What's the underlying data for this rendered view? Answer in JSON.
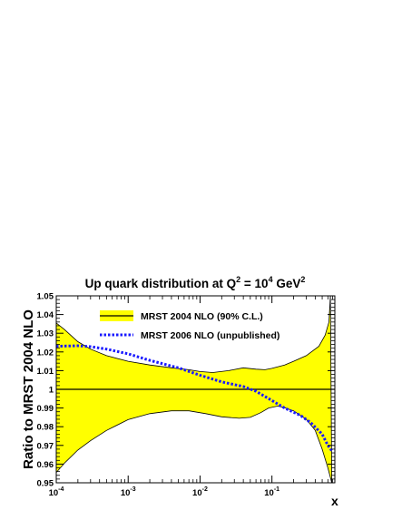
{
  "chart_data": {
    "type": "line",
    "title": {
      "prefix": "Up quark distribution at Q",
      "q_exp": "2",
      "mid": " = 10",
      "val_exp": "4",
      "unit": " GeV",
      "unit_exp": "2"
    },
    "ylabel": "Ratio to MRST 2004 NLO",
    "xlabel": "x",
    "x_scale": "log",
    "xlim": [
      0.0001,
      0.75
    ],
    "ylim": [
      0.95,
      1.05
    ],
    "x_ticks": [
      {
        "value": 0.0001,
        "base": "10",
        "exp": "-4"
      },
      {
        "value": 0.001,
        "base": "10",
        "exp": "-3"
      },
      {
        "value": 0.01,
        "base": "10",
        "exp": "-2"
      },
      {
        "value": 0.1,
        "base": "10",
        "exp": "-1"
      }
    ],
    "y_ticks": [
      {
        "value": 0.95,
        "label": "0.95"
      },
      {
        "value": 0.96,
        "label": "0.96"
      },
      {
        "value": 0.97,
        "label": "0.97"
      },
      {
        "value": 0.98,
        "label": "0.98"
      },
      {
        "value": 0.99,
        "label": "0.99"
      },
      {
        "value": 1.0,
        "label": "1"
      },
      {
        "value": 1.01,
        "label": "1.01"
      },
      {
        "value": 1.02,
        "label": "1.02"
      },
      {
        "value": 1.03,
        "label": "1.03"
      },
      {
        "value": 1.04,
        "label": "1.04"
      },
      {
        "value": 1.05,
        "label": "1.05"
      }
    ],
    "legend_position": "top-left",
    "band": {
      "name": "MRST 2004 NLO (90% C.L.)",
      "fill": "#ffff00",
      "upper": [
        [
          0.0001,
          1.0355
        ],
        [
          0.00013,
          1.032
        ],
        [
          0.0002,
          1.0255
        ],
        [
          0.0003,
          1.0215
        ],
        [
          0.0005,
          1.018
        ],
        [
          0.001,
          1.015
        ],
        [
          0.002,
          1.013
        ],
        [
          0.004,
          1.0115
        ],
        [
          0.007,
          1.0105
        ],
        [
          0.01,
          1.0095
        ],
        [
          0.015,
          1.009
        ],
        [
          0.025,
          1.01
        ],
        [
          0.04,
          1.0115
        ],
        [
          0.06,
          1.0108
        ],
        [
          0.08,
          1.0105
        ],
        [
          0.1,
          1.0112
        ],
        [
          0.15,
          1.013
        ],
        [
          0.2,
          1.015
        ],
        [
          0.3,
          1.018
        ],
        [
          0.45,
          1.023
        ],
        [
          0.55,
          1.029
        ],
        [
          0.62,
          1.036
        ],
        [
          0.65,
          1.05
        ]
      ],
      "lower": [
        [
          0.0001,
          0.9555
        ],
        [
          0.00013,
          0.9605
        ],
        [
          0.0002,
          0.9675
        ],
        [
          0.0003,
          0.9725
        ],
        [
          0.0005,
          0.978
        ],
        [
          0.001,
          0.9838
        ],
        [
          0.002,
          0.987
        ],
        [
          0.004,
          0.9885
        ],
        [
          0.007,
          0.9885
        ],
        [
          0.012,
          0.987
        ],
        [
          0.02,
          0.9853
        ],
        [
          0.035,
          0.9845
        ],
        [
          0.05,
          0.985
        ],
        [
          0.07,
          0.9875
        ],
        [
          0.09,
          0.99
        ],
        [
          0.12,
          0.991
        ],
        [
          0.15,
          0.9902
        ],
        [
          0.2,
          0.9885
        ],
        [
          0.3,
          0.984
        ],
        [
          0.4,
          0.978
        ],
        [
          0.5,
          0.968
        ],
        [
          0.6,
          0.958
        ],
        [
          0.68,
          0.95
        ]
      ]
    },
    "series": [
      {
        "name": "MRST 2004 NLO (90% C.L.)",
        "color": "#000000",
        "style": "solid",
        "points": [
          [
            0.0001,
            1.0
          ],
          [
            0.75,
            1.0
          ]
        ]
      },
      {
        "name": "MRST 2006 NLO (unpublished)",
        "color": "#1a1aff",
        "style": "dotted",
        "points": [
          [
            0.0001,
            1.023
          ],
          [
            0.0002,
            1.0233
          ],
          [
            0.0003,
            1.0228
          ],
          [
            0.0005,
            1.0215
          ],
          [
            0.001,
            1.019
          ],
          [
            0.002,
            1.0155
          ],
          [
            0.005,
            1.0115
          ],
          [
            0.01,
            1.0075
          ],
          [
            0.02,
            1.004
          ],
          [
            0.04,
            1.0015
          ],
          [
            0.06,
            0.999
          ],
          [
            0.1,
            0.994
          ],
          [
            0.15,
            0.99
          ],
          [
            0.25,
            0.986
          ],
          [
            0.35,
            0.982
          ],
          [
            0.5,
            0.976
          ],
          [
            0.6,
            0.97
          ],
          [
            0.7,
            0.9665
          ]
        ]
      }
    ]
  }
}
